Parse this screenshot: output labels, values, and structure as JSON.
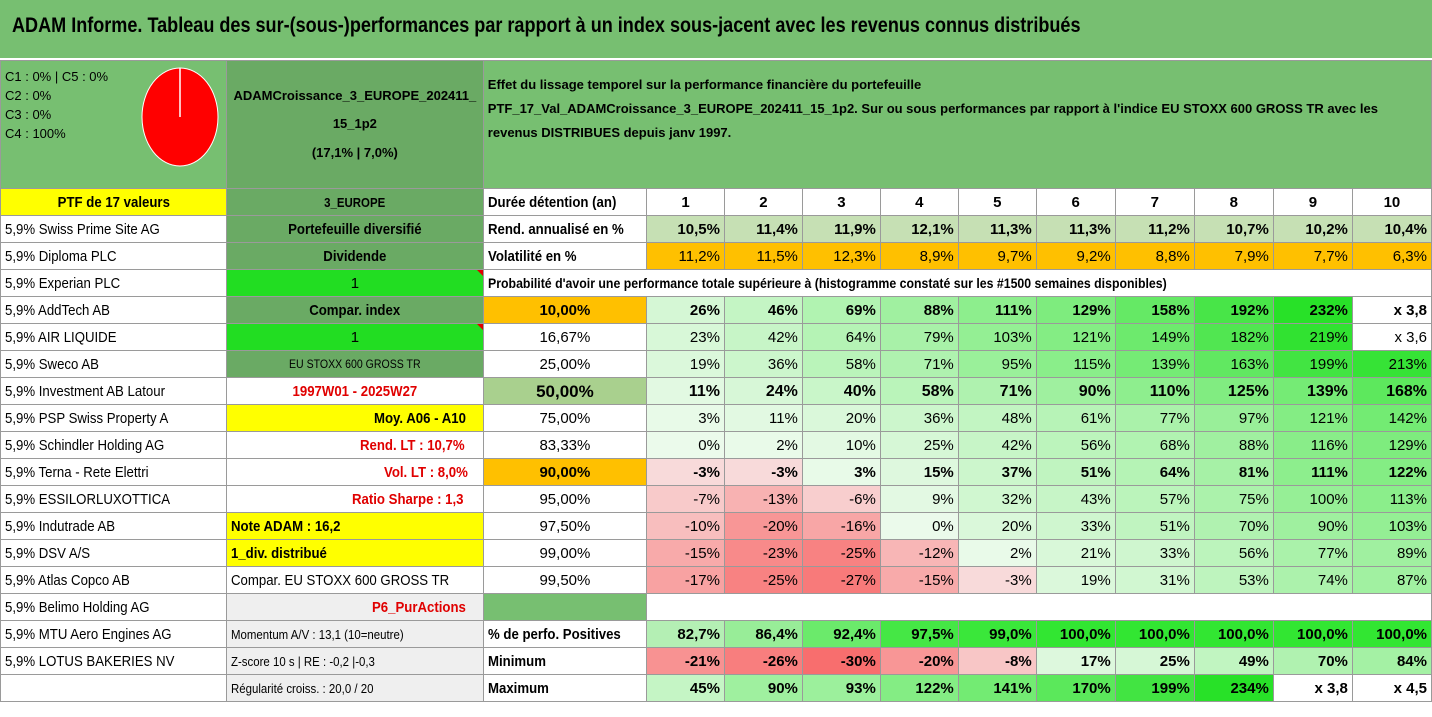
{
  "title": "ADAM Informe. Tableau des sur-(sous-)performances par rapport à un index sous-jacent avec les revenus connus distribués",
  "composition": {
    "line1": "C1 : 0% | C5 : 0%",
    "line2": "C2 : 0%",
    "line3": "C3 : 0%",
    "line4": "C4 : 100%",
    "pie_color": "#ff0000"
  },
  "fund": {
    "name": "ADAMCroissance_3_EUROPE_202411_15_1p2",
    "stats": "(17,1% | 7,0%)"
  },
  "description": {
    "line1": "Effet du lissage temporel sur la performance financière du portefeuille",
    "line2": "PTF_17_Val_ADAMCroissance_3_EUROPE_202411_15_1p2. Sur ou sous performances par rapport à l'indice EU STOXX 600 GROSS TR avec les revenus DISTRIBUES depuis janv 1997."
  },
  "ptf_label": "PTF de 17 valeurs",
  "zone": "3_EUROPE",
  "duration_label": "Durée détention (an)",
  "years": [
    "1",
    "2",
    "3",
    "4",
    "5",
    "6",
    "7",
    "8",
    "9",
    "10"
  ],
  "holdings": [
    "5,9% Swiss Prime Site AG",
    "5,9% Diploma PLC",
    "5,9% Experian PLC",
    "5,9% AddTech AB",
    "5,9% AIR LIQUIDE",
    "5,9% Sweco AB",
    "5,9% Investment AB Latour",
    "5,9% PSP Swiss Property A",
    "5,9% Schindler Holding AG",
    "5,9% Terna - Rete Elettri",
    "5,9% ESSILORLUXOTTICA",
    "5,9% Indutrade AB",
    "5,9% DSV A/S",
    "5,9% Atlas Copco AB",
    "5,9% Belimo Holding AG",
    "5,9% MTU Aero Engines AG",
    "5,9% LOTUS BAKERIES NV"
  ],
  "side": {
    "diversified": "Portefeuille diversifié",
    "dividend": "Dividende",
    "flag1": "1",
    "compar_index": "Compar. index",
    "flag2": "1",
    "index_name": "EU STOXX 600 GROSS TR",
    "period": "1997W01 - 2025W27",
    "avg": "Moy. A06 - A10",
    "rend_lt": "Rend. LT : 10,7%",
    "vol_lt": "Vol. LT : 8,0%",
    "sharpe": "Ratio Sharpe : 1,3",
    "note": "Note ADAM : 16,2",
    "div": "1_div. distribué",
    "compar_full": "Compar. EU STOXX 600 GROSS TR",
    "p6": "P6_PurActions",
    "momentum": "Momentum A/V : 13,1 (10=neutre)",
    "zscore": "Z-score 10 s | RE : -0,2 |-0,3",
    "regularity": "Régularité croiss. : 20,0 / 20"
  },
  "rend": {
    "label": "Rend. annualisé en %",
    "values": [
      "10,5%",
      "11,4%",
      "11,9%",
      "12,1%",
      "11,3%",
      "11,3%",
      "11,2%",
      "10,7%",
      "10,2%",
      "10,4%"
    ]
  },
  "vol": {
    "label": "Volatilité en %",
    "values": [
      "11,2%",
      "11,5%",
      "12,3%",
      "8,9%",
      "9,7%",
      "9,2%",
      "8,8%",
      "7,9%",
      "7,7%",
      "6,3%"
    ]
  },
  "prob_header": "Probabilité d'avoir une performance totale supérieure à (histogramme constaté sur les #1500 semaines disponibles)",
  "prob_rows": [
    {
      "p": "10,00%",
      "v": [
        "26%",
        "46%",
        "69%",
        "88%",
        "111%",
        "129%",
        "158%",
        "192%",
        "232%",
        "x 3,8"
      ]
    },
    {
      "p": "16,67%",
      "v": [
        "23%",
        "42%",
        "64%",
        "79%",
        "103%",
        "121%",
        "149%",
        "182%",
        "219%",
        "x 3,6"
      ]
    },
    {
      "p": "25,00%",
      "v": [
        "19%",
        "36%",
        "58%",
        "71%",
        "95%",
        "115%",
        "139%",
        "163%",
        "199%",
        "213%"
      ]
    },
    {
      "p": "50,00%",
      "v": [
        "11%",
        "24%",
        "40%",
        "58%",
        "71%",
        "90%",
        "110%",
        "125%",
        "139%",
        "168%"
      ]
    },
    {
      "p": "75,00%",
      "v": [
        "3%",
        "11%",
        "20%",
        "36%",
        "48%",
        "61%",
        "77%",
        "97%",
        "121%",
        "142%"
      ]
    },
    {
      "p": "83,33%",
      "v": [
        "0%",
        "2%",
        "10%",
        "25%",
        "42%",
        "56%",
        "68%",
        "88%",
        "116%",
        "129%"
      ]
    },
    {
      "p": "90,00%",
      "v": [
        "-3%",
        "-3%",
        "3%",
        "15%",
        "37%",
        "51%",
        "64%",
        "81%",
        "111%",
        "122%"
      ]
    },
    {
      "p": "95,00%",
      "v": [
        "-7%",
        "-13%",
        "-6%",
        "9%",
        "32%",
        "43%",
        "57%",
        "75%",
        "100%",
        "113%"
      ]
    },
    {
      "p": "97,50%",
      "v": [
        "-10%",
        "-20%",
        "-16%",
        "0%",
        "20%",
        "33%",
        "51%",
        "70%",
        "90%",
        "103%"
      ]
    },
    {
      "p": "99,00%",
      "v": [
        "-15%",
        "-23%",
        "-25%",
        "-12%",
        "2%",
        "21%",
        "33%",
        "56%",
        "77%",
        "89%"
      ]
    },
    {
      "p": "99,50%",
      "v": [
        "-17%",
        "-25%",
        "-27%",
        "-15%",
        "-3%",
        "19%",
        "31%",
        "53%",
        "74%",
        "87%"
      ]
    }
  ],
  "pos": {
    "label": "% de perfo. Positives",
    "values": [
      "82,7%",
      "86,4%",
      "92,4%",
      "97,5%",
      "99,0%",
      "100,0%",
      "100,0%",
      "100,0%",
      "100,0%",
      "100,0%"
    ]
  },
  "min": {
    "label": "Minimum",
    "values": [
      "-21%",
      "-26%",
      "-30%",
      "-20%",
      "-8%",
      "17%",
      "25%",
      "49%",
      "70%",
      "84%"
    ]
  },
  "max": {
    "label": "Maximum",
    "values": [
      "45%",
      "90%",
      "93%",
      "122%",
      "141%",
      "170%",
      "199%",
      "234%",
      "x 3,8",
      "x 4,5"
    ]
  }
}
